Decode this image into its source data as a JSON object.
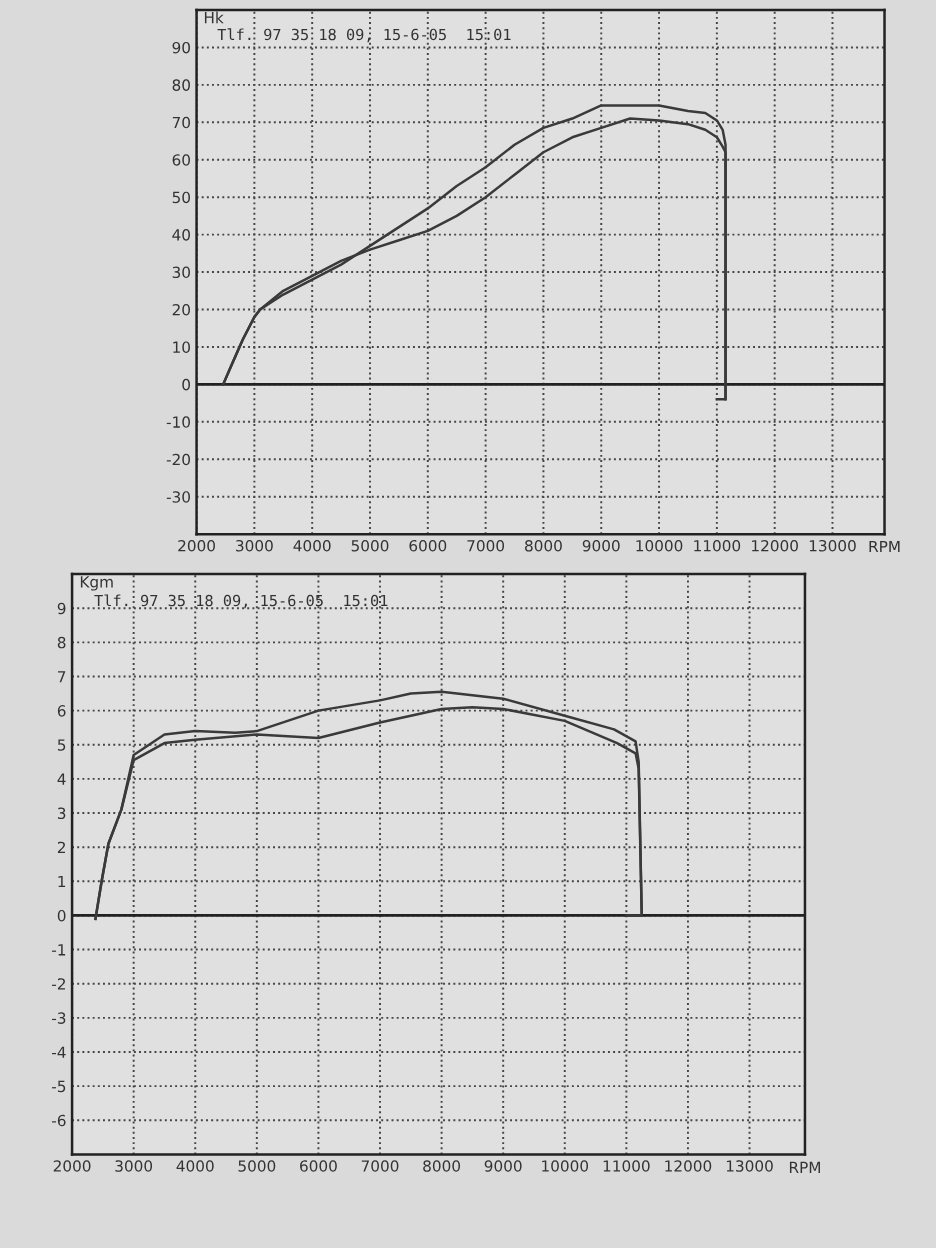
{
  "chart_data": [
    {
      "type": "line",
      "ylabel": "Hk",
      "xlabel": "RPM",
      "annotations": [
        "Tlf. 97 35 18 09, 15-6-05  15:01"
      ],
      "grid": true,
      "line_style": "solid",
      "xlim": [
        2000,
        13900
      ],
      "xticks": [
        2000,
        3000,
        4000,
        5000,
        6000,
        7000,
        8000,
        9000,
        10000,
        11000,
        12000,
        13000
      ],
      "ylim": [
        -40,
        100
      ],
      "yticks": [
        -30,
        -20,
        -10,
        0,
        10,
        20,
        30,
        40,
        50,
        60,
        70,
        80,
        90
      ],
      "ref_lines": [
        {
          "axis": "y",
          "value": 0,
          "color": "#222222"
        }
      ],
      "series": [
        {
          "color": "#3a3a3a",
          "x": [
            2460,
            2600,
            2800,
            3000,
            3100,
            3500,
            4000,
            4500,
            5000,
            5500,
            6000,
            6500,
            7000,
            7500,
            8000,
            8500,
            9000,
            9500,
            10000,
            10500,
            10800,
            11000,
            11100,
            11150,
            11150,
            11000
          ],
          "values": [
            0,
            5,
            12,
            18,
            20,
            24,
            28,
            32,
            37,
            42,
            47,
            53,
            58,
            64,
            68.5,
            71,
            74.5,
            74.5,
            74.5,
            73,
            72.5,
            70.5,
            68,
            64,
            -4,
            -4
          ]
        },
        {
          "color": "#3a3a3a",
          "x": [
            2460,
            2600,
            2800,
            3000,
            3100,
            3500,
            4000,
            4500,
            5000,
            5500,
            6000,
            6500,
            7000,
            7500,
            8000,
            8500,
            9000,
            9500,
            10000,
            10500,
            10800,
            11000,
            11100,
            11150,
            11150
          ],
          "values": [
            0,
            5,
            12,
            18,
            20,
            25,
            29,
            33,
            36,
            38.5,
            41,
            45,
            50,
            56,
            62,
            66,
            68.5,
            71,
            70.5,
            69.5,
            68,
            66,
            63.5,
            62,
            -4
          ]
        }
      ]
    },
    {
      "type": "line",
      "ylabel": "Kgm",
      "xlabel": "RPM",
      "annotations": [
        "Tlf. 97 35 18 09, 15-6-05  15:01"
      ],
      "grid": true,
      "line_style": "solid",
      "xlim": [
        2000,
        13900
      ],
      "xticks": [
        2000,
        3000,
        4000,
        5000,
        6000,
        7000,
        8000,
        9000,
        10000,
        11000,
        12000,
        13000
      ],
      "ylim": [
        -7,
        10
      ],
      "yticks": [
        -6,
        -5,
        -4,
        -3,
        -2,
        -1,
        0,
        1,
        2,
        3,
        4,
        5,
        6,
        7,
        8,
        9
      ],
      "ref_lines": [
        {
          "axis": "y",
          "value": 0,
          "color": "#222222"
        }
      ],
      "series": [
        {
          "color": "#3a3a3a",
          "x": [
            2380,
            2480,
            2590,
            2800,
            3000,
            3500,
            4000,
            4650,
            5000,
            5500,
            6000,
            7000,
            7500,
            8000,
            9000,
            10000,
            10800,
            11150,
            11200,
            11250,
            11000
          ],
          "values": [
            -0.1,
            1,
            2.1,
            3.1,
            4.7,
            5.3,
            5.4,
            5.35,
            5.4,
            5.7,
            6.0,
            6.3,
            6.5,
            6.55,
            6.35,
            5.85,
            5.45,
            5.1,
            4.5,
            0,
            0
          ]
        },
        {
          "color": "#3a3a3a",
          "x": [
            2380,
            2480,
            2590,
            2800,
            3000,
            3500,
            4000,
            5000,
            6000,
            7000,
            8000,
            8500,
            9000,
            10000,
            10850,
            11150,
            11200,
            11250
          ],
          "values": [
            -0.1,
            1,
            2.1,
            3.1,
            4.55,
            5.05,
            5.15,
            5.3,
            5.2,
            5.65,
            6.05,
            6.1,
            6.05,
            5.7,
            5.05,
            4.75,
            4.3,
            0
          ]
        }
      ]
    }
  ]
}
